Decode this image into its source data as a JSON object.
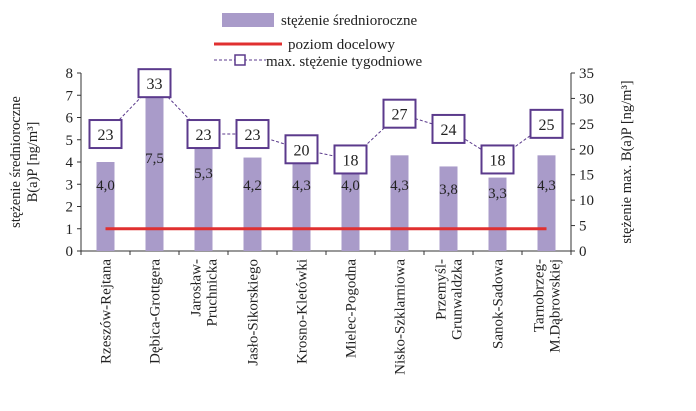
{
  "chart_data": {
    "type": "bar",
    "categories": [
      "Rzeszów-Rejtana",
      "Dębica-Grottgera",
      "Jarosław-\nPruchnicka",
      "Jasło-Sikorskiego",
      "Krosno-Kletówki",
      "Mielec-Pogodna",
      "Nisko-Szklarniowa",
      "Przemyśl-\nGrunwaldzka",
      "Sanok-Sadowa",
      "Tarnobrzeg-\nM.Dąbrowskiej"
    ],
    "series": [
      {
        "name": "stężenie średnioroczne",
        "type": "bar",
        "axis": "left",
        "values": [
          4.0,
          7.5,
          5.3,
          4.2,
          4.3,
          4.0,
          4.3,
          3.8,
          3.3,
          4.3
        ],
        "labels": [
          "4,0",
          "7,5",
          "5,3",
          "4,2",
          "4,3",
          "4,0",
          "4,3",
          "3,8",
          "3,3",
          "4,3"
        ],
        "color": "#a99bc9"
      },
      {
        "name": "poziom docelowy",
        "type": "line",
        "axis": "left",
        "values": [
          1,
          1,
          1,
          1,
          1,
          1,
          1,
          1,
          1,
          1
        ],
        "color": "#e03030"
      },
      {
        "name": "max. stężenie tygodniowe",
        "type": "line",
        "axis": "right",
        "values": [
          23,
          33,
          23,
          23,
          20,
          18,
          27,
          24,
          18,
          25
        ],
        "color": "#5b3a8c"
      }
    ],
    "ylabel": "stężenie średnioroczne\nB(a)P [ng/m³]",
    "y2label": "stężenie max. B(a)P [ng/m³]",
    "ylim": [
      0,
      8
    ],
    "y2lim": [
      0,
      35
    ],
    "yticks": [
      "0",
      "1",
      "2",
      "3",
      "4",
      "5",
      "6",
      "7",
      "8"
    ],
    "y2ticks": [
      "0",
      "5",
      "10",
      "15",
      "20",
      "25",
      "30",
      "35"
    ],
    "grid": false,
    "legend_position": "top-center"
  }
}
